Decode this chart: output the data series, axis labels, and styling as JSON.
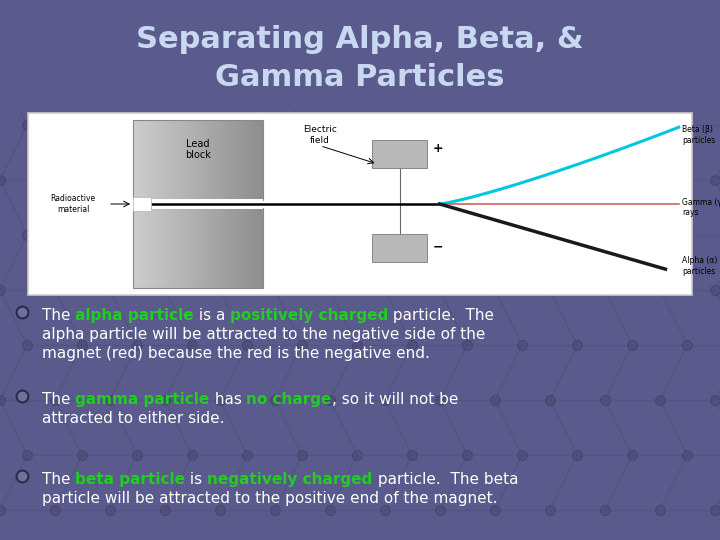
{
  "title_line1": "Separating Alpha, Beta, &",
  "title_line2": "Gamma Particles",
  "title_color": "#c8d8f0",
  "bg_color": "#5a5a8c",
  "title_fontsize": 22,
  "bullet_fontsize": 11,
  "bullet_items": [
    {
      "lines": [
        [
          {
            "text": "The ",
            "color": "white",
            "underline": false
          },
          {
            "text": "alpha particle",
            "color": "#22cc22",
            "underline": true
          },
          {
            "text": " is a ",
            "color": "white",
            "underline": false
          },
          {
            "text": "positively charged",
            "color": "#22cc22",
            "underline": true
          },
          {
            "text": " particle.  The",
            "color": "white",
            "underline": false
          }
        ],
        [
          {
            "text": "alpha particle will be attracted to the negative side of the",
            "color": "white",
            "underline": false
          }
        ],
        [
          {
            "text": "magnet (red) because the red is the negative end.",
            "color": "white",
            "underline": false
          }
        ]
      ]
    },
    {
      "lines": [
        [
          {
            "text": "The ",
            "color": "white",
            "underline": false
          },
          {
            "text": "gamma particle",
            "color": "#22cc22",
            "underline": true
          },
          {
            "text": " has ",
            "color": "white",
            "underline": false
          },
          {
            "text": "no charge",
            "color": "#22cc22",
            "underline": true
          },
          {
            "text": ", so it will not be",
            "color": "white",
            "underline": false
          }
        ],
        [
          {
            "text": "attracted to either side.",
            "color": "white",
            "underline": false
          }
        ]
      ]
    },
    {
      "lines": [
        [
          {
            "text": "The ",
            "color": "white",
            "underline": false
          },
          {
            "text": "beta particle",
            "color": "#22cc22",
            "underline": true
          },
          {
            "text": " is ",
            "color": "white",
            "underline": false
          },
          {
            "text": "negatively charged",
            "color": "#22cc22",
            "underline": true
          },
          {
            "text": " particle.  The beta",
            "color": "white",
            "underline": false
          }
        ],
        [
          {
            "text": "particle will be attracted to the positive end of the magnet.",
            "color": "white",
            "underline": false
          }
        ]
      ]
    }
  ]
}
